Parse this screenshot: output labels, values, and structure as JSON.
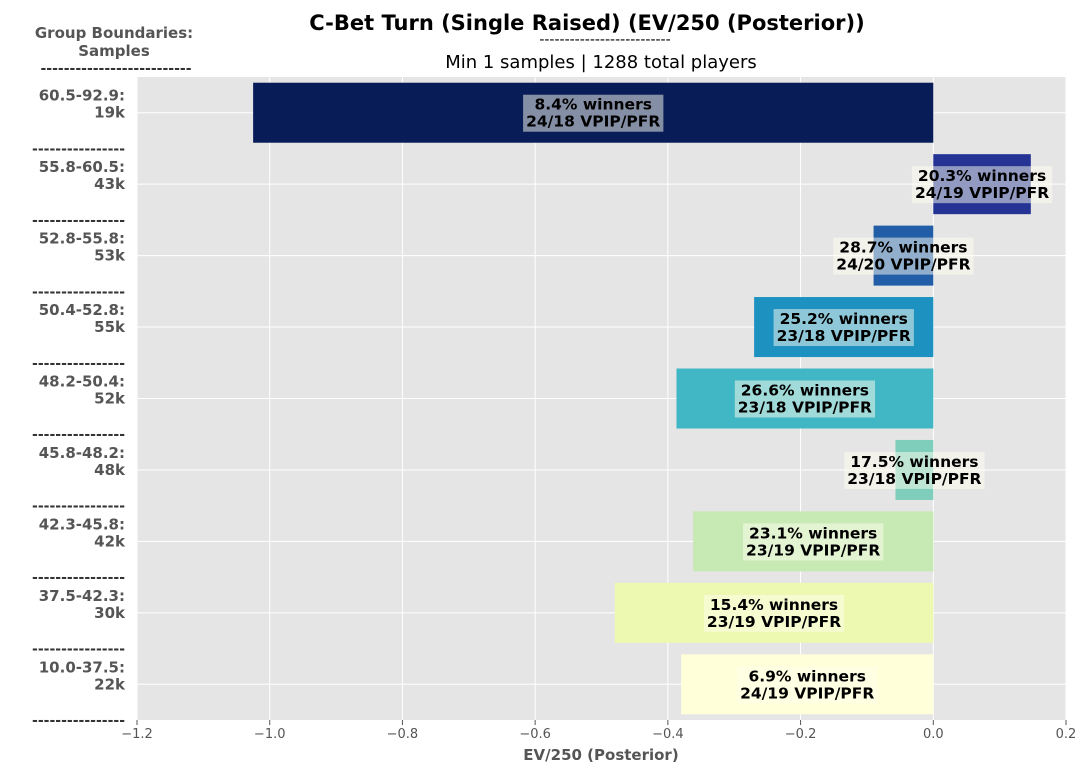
{
  "chart_data": {
    "type": "bar",
    "orientation": "horizontal",
    "title": "C-Bet Turn (Single Raised) (EV/250 (Posterior))",
    "title_underline": "--------------------------",
    "subtitle": "Min 1 samples | 1288 total players",
    "xlabel": "EV/250 (Posterior)",
    "ylabel_header": [
      "Group Boundaries:",
      "Samples"
    ],
    "ylabel_underline": "--------------------------",
    "group_separator": "----------------",
    "xlim": [
      -1.2,
      0.2
    ],
    "xticks": [
      "−1.2",
      "−1.0",
      "−0.8",
      "−0.6",
      "−0.4",
      "−0.2",
      "0.0",
      "0.2"
    ],
    "grid": true,
    "background": "#e5e5e5",
    "categories": [
      {
        "range": "60.5-92.9:",
        "samples": "19k",
        "value": -1.025,
        "winners": "8.4% winners",
        "vpip_pfr": "24/18 VPIP/PFR",
        "color": "#081d58"
      },
      {
        "range": "55.8-60.5:",
        "samples": "43k",
        "value": 0.147,
        "winners": "20.3% winners",
        "vpip_pfr": "24/19 VPIP/PFR",
        "color": "#253494"
      },
      {
        "range": "52.8-55.8:",
        "samples": "53k",
        "value": -0.09,
        "winners": "28.7% winners",
        "vpip_pfr": "24/20 VPIP/PFR",
        "color": "#225ea8"
      },
      {
        "range": "50.4-52.8:",
        "samples": "55k",
        "value": -0.27,
        "winners": "25.2% winners",
        "vpip_pfr": "23/18 VPIP/PFR",
        "color": "#1d91c0"
      },
      {
        "range": "48.2-50.4:",
        "samples": "52k",
        "value": -0.387,
        "winners": "26.6% winners",
        "vpip_pfr": "23/18 VPIP/PFR",
        "color": "#41b6c4"
      },
      {
        "range": "45.8-48.2:",
        "samples": "48k",
        "value": -0.057,
        "winners": "17.5% winners",
        "vpip_pfr": "23/18 VPIP/PFR",
        "color": "#7fcdbb"
      },
      {
        "range": "42.3-45.8:",
        "samples": "42k",
        "value": -0.362,
        "winners": "23.1% winners",
        "vpip_pfr": "23/19 VPIP/PFR",
        "color": "#c7e9b4"
      },
      {
        "range": "37.5-42.3:",
        "samples": "30k",
        "value": -0.48,
        "winners": "15.4% winners",
        "vpip_pfr": "23/19 VPIP/PFR",
        "color": "#edf8b1"
      },
      {
        "range": "10.0-37.5:",
        "samples": "22k",
        "value": -0.38,
        "winners": "6.9% winners",
        "vpip_pfr": "24/19 VPIP/PFR",
        "color": "#ffffd9"
      }
    ]
  }
}
